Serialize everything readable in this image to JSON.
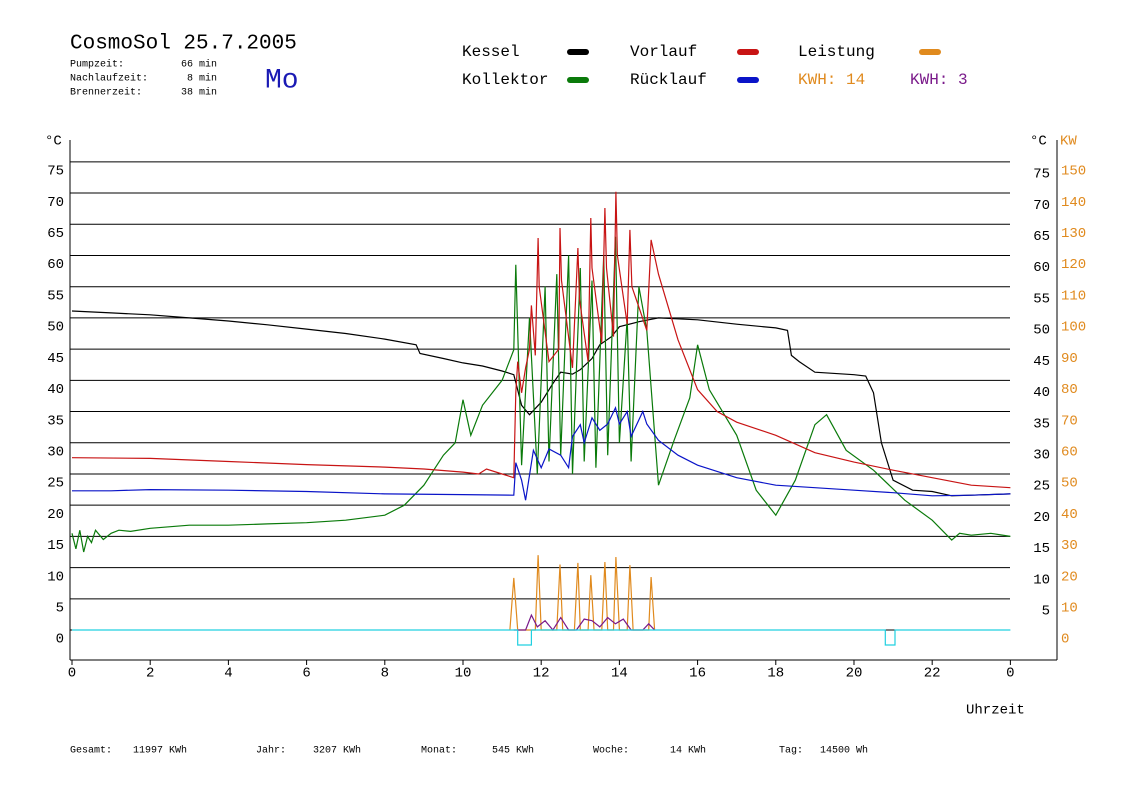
{
  "header": {
    "title": "CosmoSol 25.7.2005",
    "day": "Mo",
    "stats": [
      {
        "label": "Pumpzeit:",
        "value": "66 min"
      },
      {
        "label": "Nachlaufzeit:",
        "value": "8 min"
      },
      {
        "label": "Brennerzeit:",
        "value": "38 min"
      }
    ]
  },
  "chart_data": {
    "type": "line",
    "xlabel": "Uhrzeit",
    "ylabel": "°C",
    "y2label_unit": "°C",
    "y2label": "KW",
    "xlim": [
      0,
      25.2
    ],
    "xticks": [
      0,
      2,
      4,
      6,
      8,
      10,
      12,
      14,
      16,
      18,
      20,
      22,
      {
        "value": 24,
        "label": "0"
      }
    ],
    "ylim": [
      -4.8,
      78.5
    ],
    "yticks": [
      0,
      5,
      10,
      15,
      20,
      25,
      30,
      35,
      40,
      45,
      50,
      55,
      60,
      65,
      70,
      75
    ],
    "y_right_ticks": [
      5,
      10,
      15,
      20,
      25,
      30,
      35,
      40,
      45,
      50,
      55,
      60,
      65,
      70,
      75
    ],
    "y2lim": [
      -9.6,
      157
    ],
    "y2ticks": [
      0,
      10,
      20,
      30,
      40,
      50,
      60,
      70,
      80,
      90,
      100,
      110,
      120,
      130,
      140,
      150
    ],
    "y2color": "#e08a1e",
    "grid": true,
    "series": [
      {
        "name": "Kessel",
        "color": "#000000",
        "x": [
          0,
          1,
          2,
          3,
          4,
          5,
          6,
          7,
          8,
          8.8,
          8.9,
          9.5,
          10,
          10.5,
          11,
          11.3,
          11.5,
          11.7,
          12,
          12.3,
          12.5,
          12.8,
          13,
          13.3,
          13.5,
          13.8,
          14,
          14.5,
          15,
          16,
          17,
          18,
          18.3,
          18.4,
          18.6,
          19,
          20,
          20.3,
          20.5,
          20.7,
          21,
          21.5,
          22,
          22.5,
          23,
          24
        ],
        "values": [
          51.1,
          50.8,
          50.5,
          50,
          49.5,
          48.9,
          48.2,
          47.5,
          46.6,
          45.7,
          44.3,
          43.5,
          42.8,
          42.3,
          41.5,
          40.9,
          36,
          34.5,
          36.5,
          39.5,
          41.3,
          41,
          41.7,
          43.5,
          45.7,
          47,
          48.6,
          49.4,
          50,
          49.7,
          49,
          48.4,
          48,
          44,
          43,
          41.3,
          40.9,
          40.7,
          38,
          30,
          24,
          22.4,
          22.2,
          21.5,
          21.6,
          21.8
        ]
      },
      {
        "name": "Kollektor",
        "color": "#0a7a0a",
        "x": [
          0,
          0.1,
          0.2,
          0.3,
          0.4,
          0.5,
          0.6,
          0.8,
          1,
          1.2,
          1.5,
          2,
          3,
          4,
          5,
          6,
          7,
          8,
          8.5,
          9,
          9.5,
          9.8,
          10,
          10.2,
          10.5,
          11,
          11.3,
          11.35,
          11.5,
          11.7,
          11.9,
          12.1,
          12.2,
          12.4,
          12.5,
          12.7,
          12.8,
          13.0,
          13.1,
          13.3,
          13.4,
          13.6,
          13.7,
          13.9,
          14.0,
          14.2,
          14.3,
          14.5,
          14.7,
          15,
          15.4,
          15.8,
          16,
          16.3,
          17,
          17.5,
          18,
          18.5,
          19,
          19.3,
          19.8,
          20.5,
          21.3,
          22,
          22.5,
          22.7,
          23,
          23.5,
          24
        ],
        "values": [
          15.5,
          13,
          16,
          12.5,
          15,
          14,
          16,
          14.5,
          15.5,
          16,
          15.8,
          16.3,
          16.8,
          16.8,
          17,
          17.2,
          17.6,
          18.4,
          20,
          23.2,
          28,
          30,
          36.9,
          31.2,
          36,
          40,
          44.9,
          58.5,
          26.4,
          50,
          25,
          55,
          27,
          57,
          28,
          60,
          25,
          58,
          27,
          56,
          26,
          60,
          28,
          63,
          30,
          50,
          27,
          55,
          48,
          23.2,
          30.4,
          37.2,
          45.7,
          38.5,
          31.2,
          22.4,
          18.4,
          24,
          32.9,
          34.5,
          28.8,
          25.6,
          20.8,
          17.6,
          14.4,
          15.5,
          15.2,
          15.5,
          15
        ]
      },
      {
        "name": "Vorlauf",
        "color": "#c81414",
        "x": [
          0,
          2,
          4,
          6,
          8,
          9,
          10,
          10.4,
          10.6,
          11,
          11.3,
          11.35,
          11.4,
          11.5,
          11.6,
          11.7,
          11.75,
          11.85,
          11.92,
          11.95,
          12.2,
          12.45,
          12.48,
          12.52,
          12.8,
          12.94,
          12.98,
          13.2,
          13.27,
          13.3,
          13.55,
          13.63,
          13.67,
          13.85,
          13.91,
          13.95,
          14.2,
          14.27,
          14.32,
          14.7,
          14.81,
          15.0,
          15.5,
          16,
          16.5,
          17,
          18,
          19,
          20,
          21,
          22,
          23,
          24
        ],
        "values": [
          27.6,
          27.5,
          27,
          26.5,
          26.1,
          25.8,
          25.3,
          25,
          25.8,
          25,
          24.4,
          38,
          43,
          38,
          42,
          45,
          52,
          44,
          62.8,
          55,
          43,
          45,
          64.4,
          56,
          42,
          61.2,
          53,
          43,
          66,
          58,
          46,
          67.6,
          58,
          47,
          70.2,
          60,
          49,
          64.1,
          55,
          48,
          62.5,
          57,
          46.5,
          38.5,
          35,
          33.3,
          31.2,
          28.4,
          26.9,
          25.6,
          24.4,
          23.2,
          22.8
        ]
      },
      {
        "name": "Rücklauf",
        "color": "#0a14c8",
        "x": [
          0,
          1,
          2,
          4,
          6,
          8,
          10,
          11.3,
          11.35,
          11.5,
          11.6,
          11.8,
          12,
          12.2,
          12.5,
          12.7,
          12.8,
          13,
          13.1,
          13.3,
          13.5,
          13.7,
          13.9,
          14.0,
          14.2,
          14.3,
          14.6,
          14.7,
          15,
          15.5,
          16,
          17,
          18,
          19,
          20,
          21,
          22,
          23,
          24
        ],
        "values": [
          22.3,
          22.3,
          22.5,
          22.4,
          22.2,
          21.8,
          21.7,
          21.6,
          26.8,
          24,
          20.8,
          28.8,
          26,
          29,
          28,
          26,
          31,
          32.9,
          30,
          34,
          32,
          33,
          35.6,
          33,
          35,
          31,
          35,
          33,
          30.4,
          28,
          26.4,
          24.4,
          23.2,
          22.8,
          22.4,
          22,
          21.5,
          21.6,
          21.8
        ]
      },
      {
        "name": "Leistung",
        "color": "#e08a1e",
        "axis": "y2",
        "x": [
          11.2,
          11.3,
          11.4,
          11.5,
          11.85,
          11.92,
          12.0,
          12.4,
          12.48,
          12.55,
          12.85,
          12.94,
          13.0,
          13.2,
          13.27,
          13.35,
          13.55,
          13.63,
          13.7,
          13.85,
          13.91,
          14.0,
          14.2,
          14.27,
          14.35,
          14.75,
          14.81,
          14.9
        ],
        "values": [
          0,
          16.7,
          0,
          0,
          0,
          24,
          0,
          0,
          21,
          0,
          0,
          21.5,
          0,
          0,
          17.6,
          0,
          0,
          21.8,
          0,
          0,
          23.4,
          0,
          0,
          20.8,
          0,
          0,
          17,
          0
        ]
      },
      {
        "color": "#7a1a8a",
        "axis": "y2",
        "x": [
          11.3,
          11.6,
          11.75,
          11.9,
          12.1,
          12.3,
          12.5,
          12.7,
          12.9,
          13.1,
          13.3,
          13.5,
          13.7,
          13.9,
          14.1,
          14.3,
          14.6,
          14.75,
          14.9
        ],
        "values": [
          0,
          0,
          4.8,
          1,
          3,
          0,
          4,
          0,
          0,
          3.5,
          3,
          1,
          4,
          2,
          3.5,
          0,
          0,
          2,
          0
        ]
      },
      {
        "color": "#20d0e0",
        "x": [
          0,
          11.4,
          11.4,
          11.75,
          11.75,
          20.8,
          20.8,
          21.05,
          21.05,
          24
        ],
        "values": [
          0,
          0,
          -2.4,
          -2.4,
          0,
          0,
          -2.4,
          -2.4,
          0,
          0
        ]
      }
    ],
    "energy_labels": [
      {
        "text": "KWH: 14",
        "color": "#e08a1e"
      },
      {
        "text": "KWH: 3",
        "color": "#7a1a8a"
      }
    ]
  },
  "footer": [
    {
      "label": "Gesamt:",
      "value": "11997 KWh"
    },
    {
      "label": "Jahr:",
      "value": "3207 KWh"
    },
    {
      "label": "Monat:",
      "value": "545 KWh"
    },
    {
      "label": "Woche:",
      "value": "14 KWh"
    },
    {
      "label": "Tag:",
      "value": "14500 Wh"
    }
  ]
}
